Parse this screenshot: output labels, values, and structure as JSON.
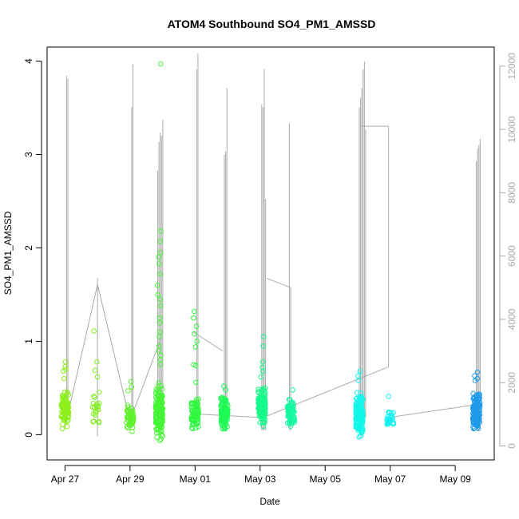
{
  "chart_data": {
    "type": "scatter",
    "title": "ATOM4 Southbound SO4_PM1_AMSSD",
    "xlabel": "Date",
    "ylabel": "SO4_PM1_AMSSD",
    "x_ticks": [
      "Apr 27",
      "Apr 29",
      "May 01",
      "May 03",
      "May 05",
      "May 07",
      "May 09"
    ],
    "x_tick_days": [
      0,
      2,
      4,
      6,
      8,
      10,
      12
    ],
    "xlim_days": [
      -0.55,
      13.2
    ],
    "ylim": [
      -0.27,
      4.15
    ],
    "y_ticks": [
      0,
      1,
      2,
      3,
      4
    ],
    "secondary_axis": {
      "color": "#aaaaaa",
      "ticks": [
        0,
        2000,
        4000,
        6000,
        8000,
        10000,
        12000
      ],
      "ylim": [
        -440,
        12600
      ],
      "series": "altitude trace (grey line)",
      "spikes": [
        {
          "day": 0.05,
          "base": 1500,
          "peaks": [
            11700,
            11600
          ]
        },
        {
          "day": 1.0,
          "base": 5300,
          "peaks": []
        },
        {
          "day": 2.05,
          "base": 700,
          "peaks": [
            10700,
            12050
          ]
        },
        {
          "day": 2.85,
          "base": 600,
          "peaks": [
            8700,
            9600,
            9900,
            9800,
            10300
          ]
        },
        {
          "day": 4.05,
          "base": 600,
          "peaks": [
            11900,
            12400
          ]
        },
        {
          "day": 4.9,
          "base": 500,
          "peaks": [
            9200,
            9300,
            11300
          ]
        },
        {
          "day": 6.05,
          "base": 500,
          "peaks": [
            10800,
            10700,
            11900,
            7800
          ]
        },
        {
          "day": 6.9,
          "base": 500,
          "peaks": [
            10200,
            5000
          ]
        },
        {
          "day": 9.05,
          "base": 900,
          "peaks": [
            10700,
            11000,
            11300,
            11900,
            12150,
            10000
          ]
        },
        {
          "day": 12.65,
          "base": 700,
          "peaks": [
            9000,
            9400,
            9500,
            9700
          ]
        }
      ],
      "connectors": [
        {
          "from": [
            0.0,
            600
          ],
          "to": [
            1.0,
            5100
          ]
        },
        {
          "from": [
            1.0,
            5100
          ],
          "to": [
            2.0,
            800
          ]
        },
        {
          "from": [
            2.0,
            800
          ],
          "to": [
            2.95,
            3400
          ]
        },
        {
          "from": [
            3.95,
            3600
          ],
          "to": [
            4.85,
            3000
          ]
        },
        {
          "from": [
            4.2,
            1000
          ],
          "to": [
            6.05,
            900
          ]
        },
        {
          "from": [
            6.2,
            5300
          ],
          "to": [
            6.95,
            5000
          ]
        },
        {
          "from": [
            6.1,
            900
          ],
          "to": [
            9.95,
            2500
          ]
        },
        {
          "from": [
            9.1,
            10100
          ],
          "to": [
            9.95,
            10100
          ]
        },
        {
          "from": [
            9.95,
            10100
          ],
          "to": [
            9.95,
            2500
          ]
        },
        {
          "from": [
            9.95,
            900
          ],
          "to": [
            12.6,
            1300
          ]
        }
      ]
    },
    "series": [
      {
        "day": 0.0,
        "color": "#8cef1a",
        "low": 0.0,
        "high": 0.55,
        "count": 90,
        "outliers": [
          0.78,
          0.73,
          0.7,
          0.68,
          0.6
        ]
      },
      {
        "day": 0.95,
        "color": "#80f020",
        "low": 0.05,
        "high": 0.55,
        "count": 22,
        "outliers": [
          1.11,
          0.78,
          0.69,
          0.62
        ]
      },
      {
        "day": 2.0,
        "color": "#5ef32c",
        "low": 0.0,
        "high": 0.35,
        "count": 60,
        "outliers": [
          0.57,
          0.51,
          0.47
        ]
      },
      {
        "day": 2.9,
        "color": "#46f536",
        "low": -0.1,
        "high": 0.6,
        "count": 170,
        "outliers": [
          3.97,
          2.18,
          2.07,
          1.95,
          1.9,
          1.83,
          1.72,
          1.6,
          1.5,
          1.45,
          1.38,
          1.25,
          1.2,
          1.1,
          1.05,
          0.95,
          0.9,
          0.85,
          0.8,
          0.75
        ]
      },
      {
        "day": 4.0,
        "color": "#2ef83e",
        "low": 0.0,
        "high": 0.45,
        "count": 75,
        "outliers": [
          1.32,
          1.25,
          1.16,
          1.08,
          1.0,
          0.94,
          0.75,
          0.74,
          0.56
        ]
      },
      {
        "day": 4.9,
        "color": "#1efa55",
        "low": 0.0,
        "high": 0.45,
        "count": 110,
        "outliers": [
          0.52,
          0.48
        ]
      },
      {
        "day": 6.05,
        "color": "#16fb8a",
        "low": 0.05,
        "high": 0.55,
        "count": 150,
        "outliers": [
          1.05,
          0.95,
          0.78,
          0.72,
          0.68,
          0.62
        ]
      },
      {
        "day": 6.95,
        "color": "#14f9a0",
        "low": 0.0,
        "high": 0.45,
        "count": 70,
        "outliers": [
          0.48
        ]
      },
      {
        "day": 9.05,
        "color": "#10f7ea",
        "low": -0.07,
        "high": 0.5,
        "count": 170,
        "outliers": [
          0.68,
          0.63,
          0.58
        ]
      },
      {
        "day": 10.0,
        "color": "#12f2f0",
        "low": 0.05,
        "high": 0.3,
        "count": 30,
        "outliers": [
          0.41
        ]
      },
      {
        "day": 12.65,
        "color": "#1f9bea",
        "low": 0.0,
        "high": 0.5,
        "count": 160,
        "outliers": [
          0.67,
          0.63,
          0.6,
          0.58
        ]
      }
    ]
  }
}
